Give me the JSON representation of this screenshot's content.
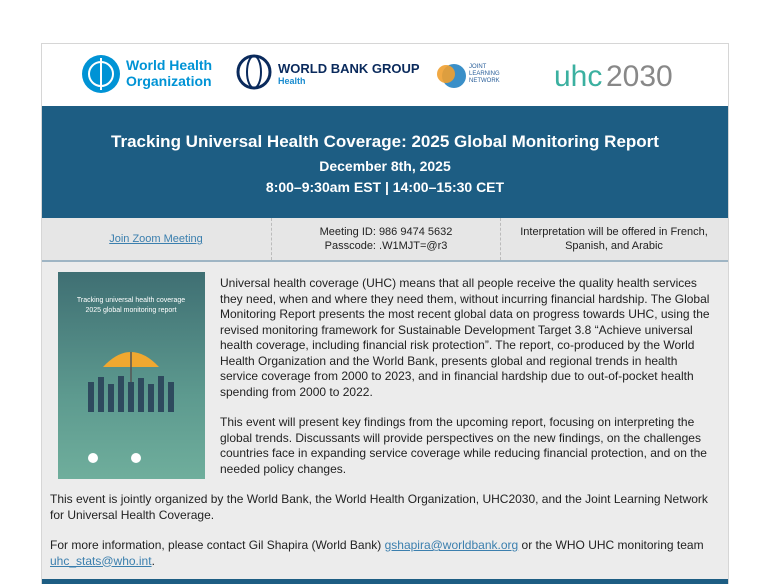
{
  "logos": {
    "who": [
      "World Health",
      "Organization"
    ],
    "worldbank": "WORLD BANK GROUP",
    "worldbank_sub": "Health",
    "jln": [
      "JOINT",
      "LEARNING",
      "NETWORK"
    ],
    "uhc": "uhc",
    "uhc_year": "2030"
  },
  "event": {
    "title": "Tracking Universal Health Coverage: 2025 Global Monitoring Report",
    "date": "December 8th, 2025",
    "time": "8:00–9:30am EST | 14:00–15:30 CET"
  },
  "info": {
    "zoom_link": "Join Zoom Meeting",
    "meeting_id": "Meeting ID: 986 9474 5632",
    "passcode": "Passcode: .W1MJT=@r3",
    "interpretation": "Interpretation will be offered in French, Spanish, and Arabic"
  },
  "cover": {
    "title": "Tracking universal health coverage",
    "subtitle": "2025 global monitoring report"
  },
  "paragraphs": [
    "Universal health coverage (UHC) means that all people receive the quality health services they need, when and where they need them, without incurring financial hardship. The Global Monitoring Report presents the most recent global data on progress towards UHC, using the revised monitoring framework for Sustainable Development Target 3.8 “Achieve universal health coverage, including financial risk protection”. The report, co-produced by the World Health Organization and the World Bank, presents global and regional trends in health service coverage from 2000 to 2023, and in financial hardship due to out-of-pocket health spending from 2000 to 2022.",
    "This event will present key findings from the upcoming report, focusing on interpreting the global trends. Discussants will provide perspectives on the new findings, on the challenges countries face in expanding service coverage while reducing financial protection, and on the needed policy changes.",
    "This event is jointly organized by the World Bank, the World Health Organization, UHC2030, and the Joint Learning Network for Universal Health Coverage."
  ],
  "contact": {
    "before": "For more information, please contact Gil Shapira (World Bank) ",
    "email1": "gshapira@worldbank.org",
    "middle": " or the WHO UHC monitoring team ",
    "email2": "uhc_stats@who.int",
    "end": "."
  }
}
